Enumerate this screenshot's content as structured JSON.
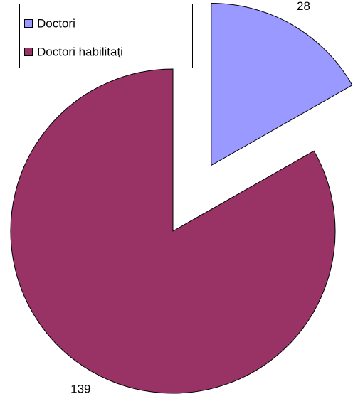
{
  "chart_data": {
    "type": "pie",
    "series": [
      {
        "name": "Doctori",
        "color": "#9999ff",
        "values": [
          28
        ]
      },
      {
        "name": "Doctori habilitaţi",
        "color": "#993366",
        "values": [
          139
        ]
      }
    ],
    "legend": "top-left"
  }
}
